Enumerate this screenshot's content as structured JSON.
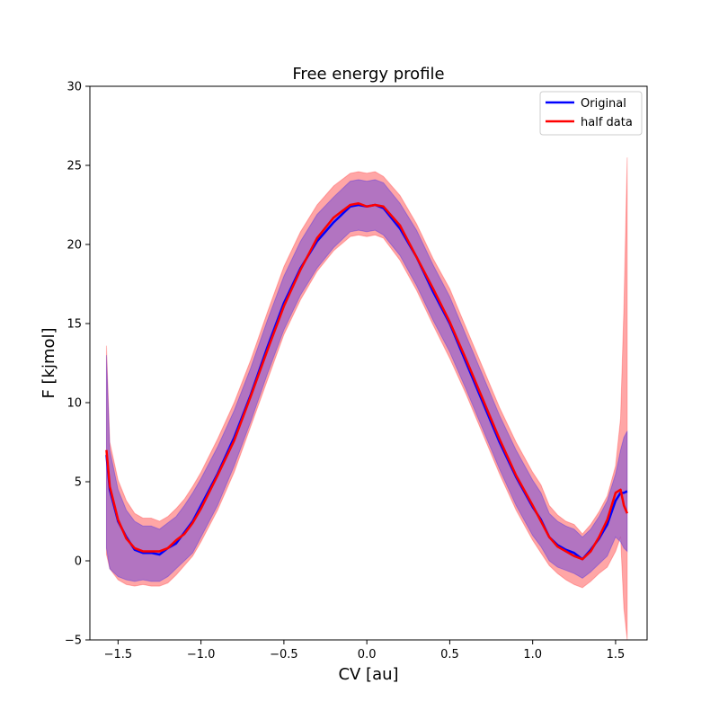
{
  "chart_data": {
    "type": "line",
    "title": "Free energy profile",
    "xlabel": "CV [au]",
    "ylabel": "F [kjmol]",
    "xlim": [
      -1.67,
      1.69
    ],
    "ylim": [
      -5,
      30
    ],
    "xticks": [
      -1.5,
      -1.0,
      -0.5,
      0.0,
      0.5,
      1.0,
      1.5
    ],
    "xtick_labels": [
      "−1.5",
      "−1.0",
      "−0.5",
      "0.0",
      "0.5",
      "1.0",
      "1.5"
    ],
    "yticks": [
      -5,
      0,
      5,
      10,
      15,
      20,
      25,
      30
    ],
    "ytick_labels": [
      "−5",
      "0",
      "5",
      "10",
      "15",
      "20",
      "25",
      "30"
    ],
    "grid": false,
    "legend_position": "top-right",
    "x": [
      -1.57,
      -1.55,
      -1.5,
      -1.45,
      -1.4,
      -1.35,
      -1.3,
      -1.25,
      -1.2,
      -1.15,
      -1.1,
      -1.05,
      -1.0,
      -0.9,
      -0.8,
      -0.7,
      -0.6,
      -0.5,
      -0.4,
      -0.3,
      -0.2,
      -0.1,
      -0.05,
      0.0,
      0.05,
      0.1,
      0.2,
      0.3,
      0.4,
      0.5,
      0.6,
      0.7,
      0.8,
      0.9,
      1.0,
      1.05,
      1.1,
      1.15,
      1.2,
      1.25,
      1.3,
      1.35,
      1.4,
      1.45,
      1.5,
      1.53,
      1.55,
      1.57
    ],
    "series": [
      {
        "name": "Original",
        "color": "#0000ff",
        "values": [
          6.7,
          4.5,
          2.5,
          1.5,
          0.7,
          0.5,
          0.5,
          0.4,
          0.8,
          1.1,
          1.8,
          2.5,
          3.5,
          5.5,
          7.8,
          10.5,
          13.5,
          16.3,
          18.5,
          20.2,
          21.4,
          22.4,
          22.5,
          22.4,
          22.5,
          22.3,
          21.0,
          19.2,
          17.0,
          15.0,
          12.5,
          10.0,
          7.5,
          5.3,
          3.4,
          2.6,
          1.5,
          1.0,
          0.7,
          0.5,
          0.1,
          0.7,
          1.4,
          2.3,
          3.8,
          4.3,
          4.3,
          4.4
        ],
        "band": {
          "lower": [
            0.8,
            -0.5,
            -1.0,
            -1.2,
            -1.3,
            -1.2,
            -1.3,
            -1.3,
            -1.0,
            -0.5,
            0.0,
            0.5,
            1.5,
            3.5,
            6.0,
            8.8,
            11.8,
            14.6,
            16.8,
            18.5,
            19.8,
            20.8,
            20.9,
            20.8,
            20.9,
            20.6,
            19.3,
            17.4,
            15.2,
            13.2,
            10.8,
            8.3,
            5.8,
            3.5,
            1.6,
            0.9,
            0.0,
            -0.4,
            -0.6,
            -0.8,
            -1.1,
            -0.7,
            -0.2,
            0.3,
            1.5,
            1.2,
            0.8,
            0.6
          ],
          "upper": [
            13.0,
            7.0,
            4.5,
            3.2,
            2.5,
            2.2,
            2.2,
            2.0,
            2.4,
            2.8,
            3.5,
            4.3,
            5.2,
            7.2,
            9.5,
            12.2,
            15.2,
            18.0,
            20.2,
            21.9,
            23.0,
            24.0,
            24.1,
            24.0,
            24.1,
            23.9,
            22.6,
            20.9,
            18.7,
            16.7,
            14.2,
            11.7,
            9.2,
            7.0,
            5.1,
            4.3,
            3.0,
            2.5,
            2.2,
            2.0,
            1.5,
            2.0,
            2.8,
            3.8,
            5.5,
            7.0,
            7.8,
            8.2
          ]
        }
      },
      {
        "name": "half data",
        "color": "#ff0000",
        "values": [
          7.0,
          4.7,
          2.6,
          1.4,
          0.8,
          0.6,
          0.6,
          0.6,
          0.8,
          1.3,
          1.7,
          2.4,
          3.3,
          5.4,
          7.6,
          10.4,
          13.3,
          16.1,
          18.4,
          20.4,
          21.7,
          22.5,
          22.6,
          22.4,
          22.5,
          22.4,
          21.2,
          19.2,
          17.2,
          15.1,
          12.7,
          10.2,
          7.7,
          5.4,
          3.5,
          2.5,
          1.5,
          0.9,
          0.6,
          0.3,
          0.1,
          0.6,
          1.5,
          2.6,
          4.3,
          4.5,
          3.5,
          3.0
        ],
        "band": {
          "lower": [
            0.4,
            -0.5,
            -1.2,
            -1.5,
            -1.6,
            -1.5,
            -1.6,
            -1.6,
            -1.4,
            -0.9,
            -0.3,
            0.3,
            1.2,
            3.2,
            5.6,
            8.5,
            11.4,
            14.3,
            16.5,
            18.3,
            19.6,
            20.5,
            20.6,
            20.5,
            20.6,
            20.4,
            19.0,
            17.1,
            14.9,
            12.8,
            10.5,
            8.0,
            5.5,
            3.2,
            1.3,
            0.5,
            -0.3,
            -0.8,
            -1.2,
            -1.5,
            -1.7,
            -1.3,
            -0.8,
            -0.4,
            0.6,
            1.5,
            -3.0,
            -5.0
          ],
          "upper": [
            13.6,
            7.5,
            5.1,
            3.8,
            3.0,
            2.7,
            2.7,
            2.5,
            2.8,
            3.3,
            3.9,
            4.7,
            5.6,
            7.7,
            10.0,
            12.7,
            15.7,
            18.6,
            20.8,
            22.5,
            23.7,
            24.5,
            24.6,
            24.5,
            24.6,
            24.3,
            23.1,
            21.3,
            19.1,
            17.2,
            14.7,
            12.2,
            9.7,
            7.5,
            5.6,
            4.8,
            3.5,
            2.9,
            2.5,
            2.3,
            1.7,
            2.3,
            3.1,
            4.1,
            6.0,
            9.0,
            16.0,
            25.5
          ]
        }
      }
    ]
  }
}
